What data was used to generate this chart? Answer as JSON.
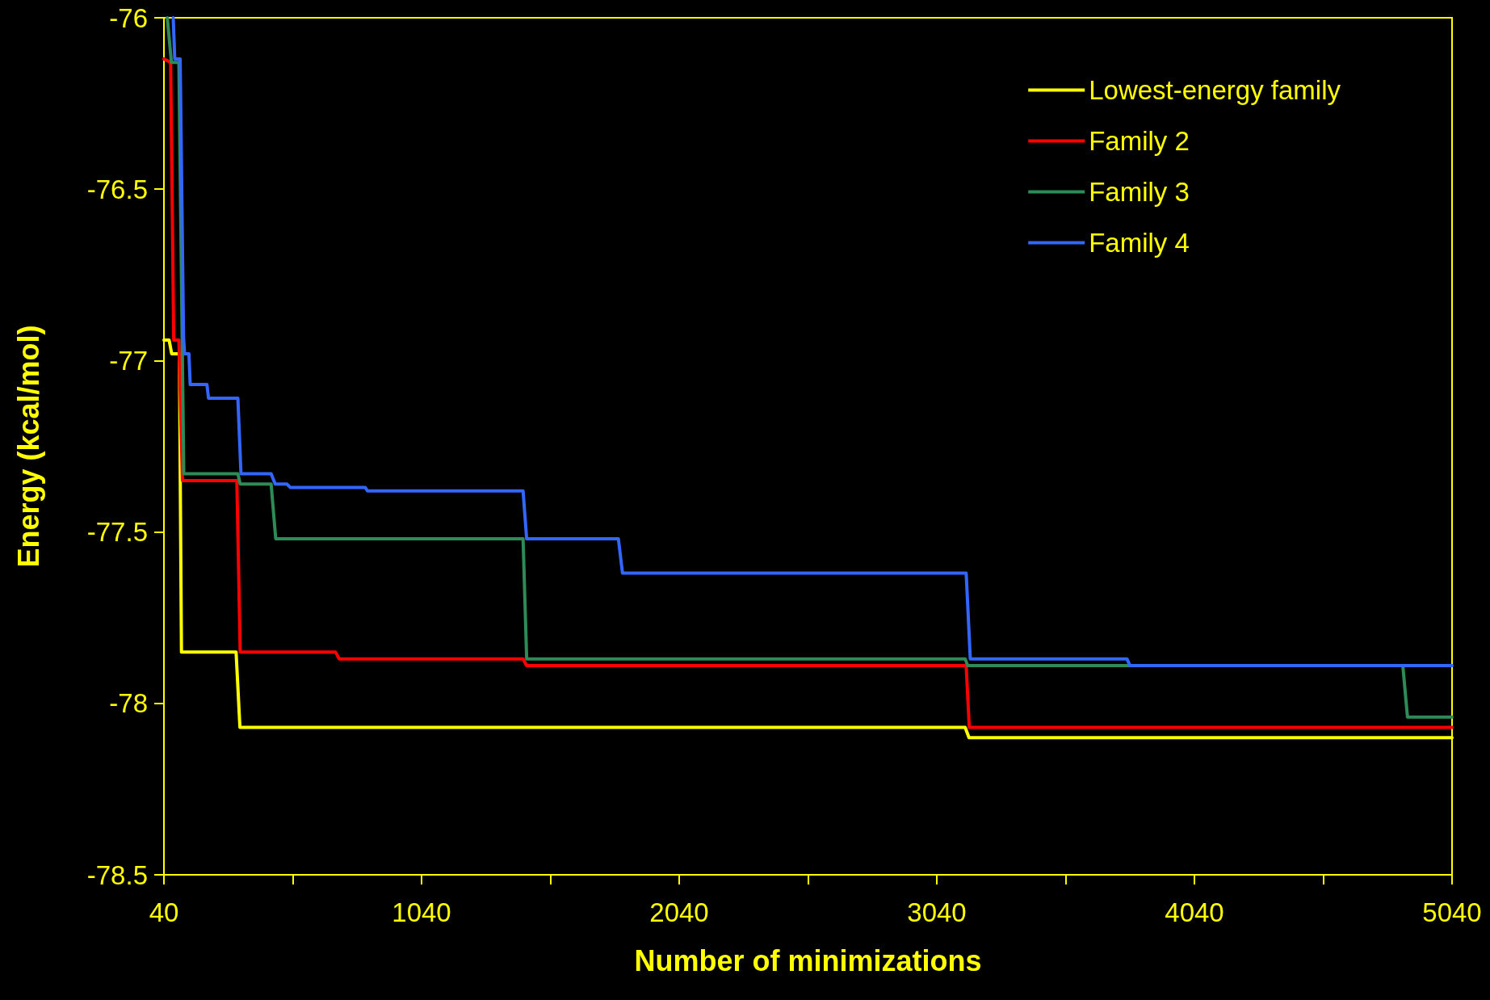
{
  "chart_data": {
    "type": "line",
    "xlabel": "Number of minimizations",
    "ylabel": "Energy (kcal/mol)",
    "xlim": [
      40,
      5040
    ],
    "xticks": [
      40,
      {
        "value": 540,
        "label": null
      },
      1040,
      {
        "value": 1540,
        "label": null
      },
      2040,
      {
        "value": 2540,
        "label": null
      },
      3040,
      {
        "value": 3540,
        "label": null
      },
      4040,
      {
        "value": 4540,
        "label": null
      },
      5040
    ],
    "ylim": [
      -78.5,
      -76
    ],
    "yticks": [
      -78.5,
      -78,
      -77.5,
      -77,
      -76.5,
      -76
    ],
    "grid": false,
    "legend": "top right",
    "marker": "none",
    "line_style": "solid",
    "series": [
      {
        "name": "Lowest-energy family",
        "color": "#ffff00",
        "x": [
          40,
          60,
          70,
          100,
          108,
          320,
          335,
          3150,
          3165,
          5040
        ],
        "values": [
          -76.94,
          -76.94,
          -76.98,
          -76.98,
          -77.85,
          -77.85,
          -78.07,
          -78.07,
          -78.1,
          -78.1
        ]
      },
      {
        "name": "Family 2",
        "color": "#ff0000",
        "x": [
          40,
          66,
          78,
          98,
          112,
          323,
          336,
          706,
          720,
          1434,
          1448,
          3154,
          3166,
          5040
        ],
        "values": [
          -76.12,
          -76.13,
          -76.94,
          -76.94,
          -77.35,
          -77.35,
          -77.85,
          -77.85,
          -77.87,
          -77.87,
          -77.89,
          -77.89,
          -78.07,
          -78.07
        ]
      },
      {
        "name": "Family 3",
        "color": "#2e8b57",
        "x": [
          53,
          69,
          98,
          117,
          327,
          336,
          456,
          474,
          1434,
          1448,
          3150,
          3160,
          4849,
          4867,
          5040
        ],
        "values": [
          -76,
          -76.13,
          -76.13,
          -77.33,
          -77.33,
          -77.36,
          -77.36,
          -77.52,
          -77.52,
          -77.87,
          -77.87,
          -77.89,
          -77.89,
          -78.04,
          -78.04
        ]
      },
      {
        "name": "Family 4",
        "color": "#3366ff",
        "x": [
          76,
          82,
          103,
          116,
          120,
          137,
          142,
          207,
          213,
          327,
          339,
          456,
          472,
          517,
          530,
          821,
          830,
          1434,
          1448,
          1804,
          1820,
          3154,
          3170,
          3778,
          3790,
          5040
        ],
        "values": [
          -76,
          -76.12,
          -76.12,
          -76.93,
          -76.98,
          -76.98,
          -77.07,
          -77.07,
          -77.11,
          -77.11,
          -77.33,
          -77.33,
          -77.36,
          -77.36,
          -77.37,
          -77.37,
          -77.38,
          -77.38,
          -77.52,
          -77.52,
          -77.62,
          -77.62,
          -77.87,
          -77.87,
          -77.89,
          -77.89
        ]
      }
    ]
  }
}
